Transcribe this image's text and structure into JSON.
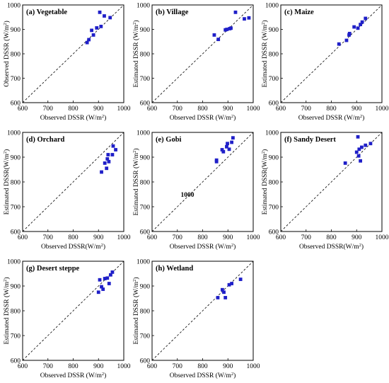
{
  "colors": {
    "marker": "#1f1fc8",
    "axis": "#000000",
    "reference_line": "#000000"
  },
  "chart_data": [
    {
      "type": "scatter",
      "title": "(a) Vegetable",
      "xlabel": "Observed DSSR (W/m2)",
      "ylabel": "Observed DSSR (W/m2)",
      "xlim": [
        600,
        1000
      ],
      "ylim": [
        600,
        1000
      ],
      "xticks": [
        "600",
        "700",
        "800",
        "900",
        "1000"
      ],
      "yticks": [
        "600",
        "700",
        "800",
        "900",
        "1000"
      ],
      "reference_line": "1:1",
      "points": [
        [
          855,
          846
        ],
        [
          862,
          858
        ],
        [
          873,
          896
        ],
        [
          880,
          877
        ],
        [
          893,
          906
        ],
        [
          905,
          970
        ],
        [
          910,
          912
        ],
        [
          923,
          955
        ],
        [
          946,
          948
        ]
      ]
    },
    {
      "type": "scatter",
      "title": "(b) Village",
      "xlabel": "Observed DSSR (W/m2)",
      "ylabel": "Estimated DSSR (W/m2)",
      "xlim": [
        600,
        1000
      ],
      "ylim": [
        600,
        1000
      ],
      "xticks": [
        "600",
        "700",
        "800",
        "900",
        "1000"
      ],
      "yticks": [
        "600",
        "700",
        "800",
        "900",
        "1000"
      ],
      "reference_line": "1:1",
      "points": [
        [
          846,
          877
        ],
        [
          862,
          859
        ],
        [
          890,
          898
        ],
        [
          896,
          900
        ],
        [
          907,
          903
        ],
        [
          912,
          905
        ],
        [
          930,
          970
        ],
        [
          965,
          943
        ],
        [
          983,
          947
        ]
      ]
    },
    {
      "type": "scatter",
      "title": "(c) Maize",
      "xlabel": "Observed DSSR (W/m2)",
      "ylabel": "Estimated DSSR (W/m2)",
      "xlim": [
        600,
        1000
      ],
      "ylim": [
        600,
        1000
      ],
      "xticks": [
        "600",
        "700",
        "800",
        "900",
        "1000"
      ],
      "yticks": [
        "600",
        "700",
        "800",
        "900",
        "1000"
      ],
      "reference_line": "1:1",
      "points": [
        [
          830,
          840
        ],
        [
          860,
          855
        ],
        [
          870,
          877
        ],
        [
          872,
          883
        ],
        [
          890,
          910
        ],
        [
          905,
          905
        ],
        [
          915,
          920
        ],
        [
          922,
          930
        ],
        [
          935,
          945
        ]
      ]
    },
    {
      "type": "scatter",
      "title": "(d) Orchard",
      "xlabel": "Observed DSSR(W/m2)",
      "ylabel": "Estimated DSSR(W/m2)",
      "xlim": [
        600,
        1000
      ],
      "ylim": [
        600,
        1000
      ],
      "xticks": [
        "600",
        "700",
        "800",
        "900",
        "1000"
      ],
      "yticks": [
        "600",
        "700",
        "800",
        "900",
        "1000"
      ],
      "reference_line": "1:1",
      "points": [
        [
          912,
          840
        ],
        [
          925,
          876
        ],
        [
          932,
          855
        ],
        [
          935,
          893
        ],
        [
          938,
          910
        ],
        [
          941,
          882
        ],
        [
          955,
          910
        ],
        [
          958,
          945
        ],
        [
          968,
          930
        ]
      ]
    },
    {
      "type": "scatter",
      "title": "(e) Gobi",
      "xlabel": "Observed DSSR (W/m2)",
      "ylabel": "Estimated DSSR (W/m2)",
      "xlim": [
        600,
        1000
      ],
      "ylim": [
        600,
        1000
      ],
      "xticks": [
        "600",
        "700",
        "800",
        "900",
        "1000"
      ],
      "yticks": [
        "600",
        "700",
        "800",
        "900",
        "1000"
      ],
      "reference_line": "1:1",
      "annotation": "1000",
      "points": [
        [
          855,
          882
        ],
        [
          855,
          888
        ],
        [
          877,
          930
        ],
        [
          882,
          922
        ],
        [
          895,
          942
        ],
        [
          898,
          955
        ],
        [
          905,
          932
        ],
        [
          915,
          960
        ],
        [
          920,
          978
        ]
      ]
    },
    {
      "type": "scatter",
      "title": "(f) Sandy Desert",
      "xlabel": "Observed DSSR(W/m2)",
      "ylabel": "Estimated DSSR(W/m2)",
      "xlim": [
        600,
        1000
      ],
      "ylim": [
        600,
        1000
      ],
      "xticks": [
        "600",
        "700",
        "800",
        "900",
        "1000"
      ],
      "yticks": [
        "600",
        "700",
        "800",
        "900",
        "1000"
      ],
      "reference_line": "1:1",
      "points": [
        [
          855,
          876
        ],
        [
          900,
          920
        ],
        [
          905,
          982
        ],
        [
          910,
          932
        ],
        [
          915,
          885
        ],
        [
          920,
          940
        ],
        [
          935,
          948
        ],
        [
          955,
          955
        ],
        [
          908,
          905
        ]
      ]
    },
    {
      "type": "scatter",
      "title": "(g) Desert steppe",
      "xlabel": "Observed DSSR (W/m2)",
      "ylabel": "Estimated DSSR (W/m2)",
      "xlim": [
        600,
        1000
      ],
      "ylim": [
        600,
        1000
      ],
      "xticks": [
        "600",
        "700",
        "800",
        "900",
        "1000"
      ],
      "yticks": [
        "600",
        "700",
        "800",
        "900",
        "1000"
      ],
      "reference_line": "1:1",
      "points": [
        [
          900,
          875
        ],
        [
          905,
          925
        ],
        [
          912,
          897
        ],
        [
          918,
          887
        ],
        [
          925,
          930
        ],
        [
          935,
          932
        ],
        [
          942,
          910
        ],
        [
          948,
          945
        ],
        [
          955,
          956
        ]
      ]
    },
    {
      "type": "scatter",
      "title": "(h) Wetland",
      "xlabel": "Observed DSSR (W/m2)",
      "ylabel": "Estimated DSSR (W/m2)",
      "xlim": [
        600,
        1000
      ],
      "ylim": [
        600,
        1000
      ],
      "xticks": [
        "600",
        "700",
        "800",
        "900",
        "1000"
      ],
      "yticks": [
        "600",
        "700",
        "800",
        "900",
        "1000"
      ],
      "reference_line": "1:1",
      "points": [
        [
          860,
          853
        ],
        [
          878,
          885
        ],
        [
          884,
          875
        ],
        [
          890,
          853
        ],
        [
          905,
          905
        ],
        [
          915,
          910
        ],
        [
          950,
          927
        ]
      ]
    }
  ]
}
